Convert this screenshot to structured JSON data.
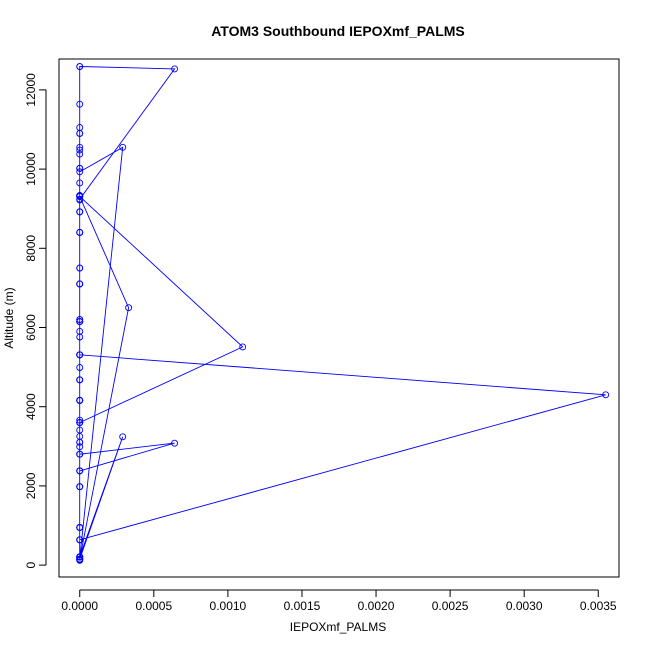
{
  "chart_data": {
    "type": "line",
    "title": "ATOM3 Southbound IEPOXmf_PALMS",
    "xlabel": "IEPOXmf_PALMS",
    "ylabel": "Altitude (m)",
    "xlim": [
      -0.00014,
      0.00364
    ],
    "ylim": [
      -300,
      12780
    ],
    "x_ticks": [
      0,
      0.0005,
      0.001,
      0.0015,
      0.002,
      0.0025,
      0.003,
      0.0035
    ],
    "x_tick_labels": [
      "0.0000",
      "0.0005",
      "0.0010",
      "0.0015",
      "0.0020",
      "0.0025",
      "0.0030",
      "0.0035"
    ],
    "y_ticks": [
      0,
      2000,
      4000,
      6000,
      8000,
      10000,
      12000
    ],
    "y_tick_labels": [
      "0",
      "2000",
      "4000",
      "6000",
      "8000",
      "10000",
      "12000"
    ],
    "grid": false,
    "series_color": "#0000ff",
    "series": [
      {
        "x": [
          0,
          0,
          0,
          0,
          0,
          0.00064,
          0,
          0,
          0,
          0,
          0,
          0,
          0,
          0,
          0,
          0,
          0,
          0,
          0,
          0,
          0,
          0,
          0,
          0,
          0,
          0,
          0,
          0,
          0,
          0,
          0.00029,
          0,
          0,
          0,
          0,
          0,
          0,
          0,
          0,
          0,
          0,
          0,
          0,
          0,
          0,
          0,
          0,
          0,
          0,
          0,
          0,
          0,
          0,
          0.00064,
          0,
          0,
          0,
          0,
          0,
          0,
          0,
          0,
          0,
          0,
          0,
          0.00033,
          0,
          0,
          0,
          0,
          0,
          0,
          0,
          0,
          0,
          0,
          0,
          0,
          0,
          0,
          0,
          0.0011,
          0,
          0,
          0,
          0,
          0,
          0,
          0,
          0,
          0,
          0,
          0.00355,
          0,
          0,
          0,
          0.00029,
          0,
          0,
          0
        ],
        "y": [
          200,
          640,
          950,
          1980,
          2380,
          3080,
          2800,
          2990,
          3100,
          3250,
          3410,
          3600,
          3660,
          4160,
          4680,
          4990,
          5310,
          5760,
          5900,
          6150,
          6200,
          7100,
          7500,
          8400,
          8920,
          9220,
          9310,
          9330,
          9650,
          9930,
          10550,
          150,
          210,
          640,
          950,
          1980,
          2800,
          3600,
          4160,
          5310,
          6150,
          7100,
          8400,
          9310,
          9330,
          10020,
          10380,
          10480,
          10550,
          10900,
          11050,
          11640,
          12590,
          12530,
          9240,
          8920,
          7500,
          6200,
          5310,
          4160,
          3600,
          2380,
          950,
          210,
          150,
          6500,
          9310,
          8920,
          7100,
          6150,
          5310,
          4680,
          3600,
          2800,
          1980,
          950,
          640,
          210,
          150,
          3100,
          3600,
          5510,
          9310,
          10020,
          10900,
          12590,
          9330,
          8400,
          6150,
          4160,
          2380,
          640,
          4300,
          5310,
          4680,
          150,
          3240,
          210,
          120,
          130
        ]
      }
    ]
  }
}
